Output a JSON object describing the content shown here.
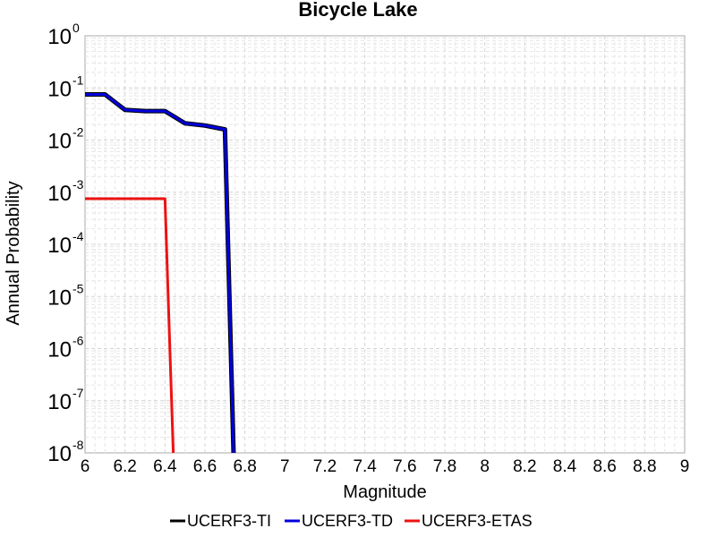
{
  "chart_data": {
    "type": "line",
    "title": "Bicycle Lake",
    "xlabel": "Magnitude",
    "ylabel": "Annual Probability",
    "xlim": [
      6,
      9
    ],
    "ylim": [
      1e-08,
      1
    ],
    "yscale": "log",
    "grid": true,
    "legend_position": "bottom",
    "x_ticks": [
      "6",
      "6.2",
      "6.4",
      "6.6",
      "6.8",
      "7",
      "7.2",
      "7.4",
      "7.6",
      "7.8",
      "8",
      "8.2",
      "8.4",
      "8.6",
      "8.8",
      "9"
    ],
    "y_ticks": [
      {
        "base": "10",
        "exp": "0"
      },
      {
        "base": "10",
        "exp": "-1"
      },
      {
        "base": "10",
        "exp": "-2"
      },
      {
        "base": "10",
        "exp": "-3"
      },
      {
        "base": "10",
        "exp": "-4"
      },
      {
        "base": "10",
        "exp": "-5"
      },
      {
        "base": "10",
        "exp": "-6"
      },
      {
        "base": "10",
        "exp": "-7"
      },
      {
        "base": "10",
        "exp": "-8"
      }
    ],
    "series": [
      {
        "name": "UCERF3-TI",
        "color": "#000000",
        "x": [
          6.0,
          6.1,
          6.2,
          6.3,
          6.4,
          6.5,
          6.6,
          6.7,
          6.75
        ],
        "y": [
          0.075,
          0.075,
          0.038,
          0.036,
          0.036,
          0.021,
          0.019,
          0.016,
          1e-09
        ]
      },
      {
        "name": "UCERF3-TD",
        "color": "#0000dd",
        "x": [
          6.0,
          6.1,
          6.2,
          6.3,
          6.4,
          6.5,
          6.6,
          6.7,
          6.75
        ],
        "y": [
          0.075,
          0.075,
          0.038,
          0.036,
          0.036,
          0.021,
          0.019,
          0.016,
          1e-09
        ]
      },
      {
        "name": "UCERF3-ETAS",
        "color": "#ee1111",
        "x": [
          6.0,
          6.4,
          6.45
        ],
        "y": [
          0.00075,
          0.00075,
          1e-09
        ]
      }
    ]
  }
}
